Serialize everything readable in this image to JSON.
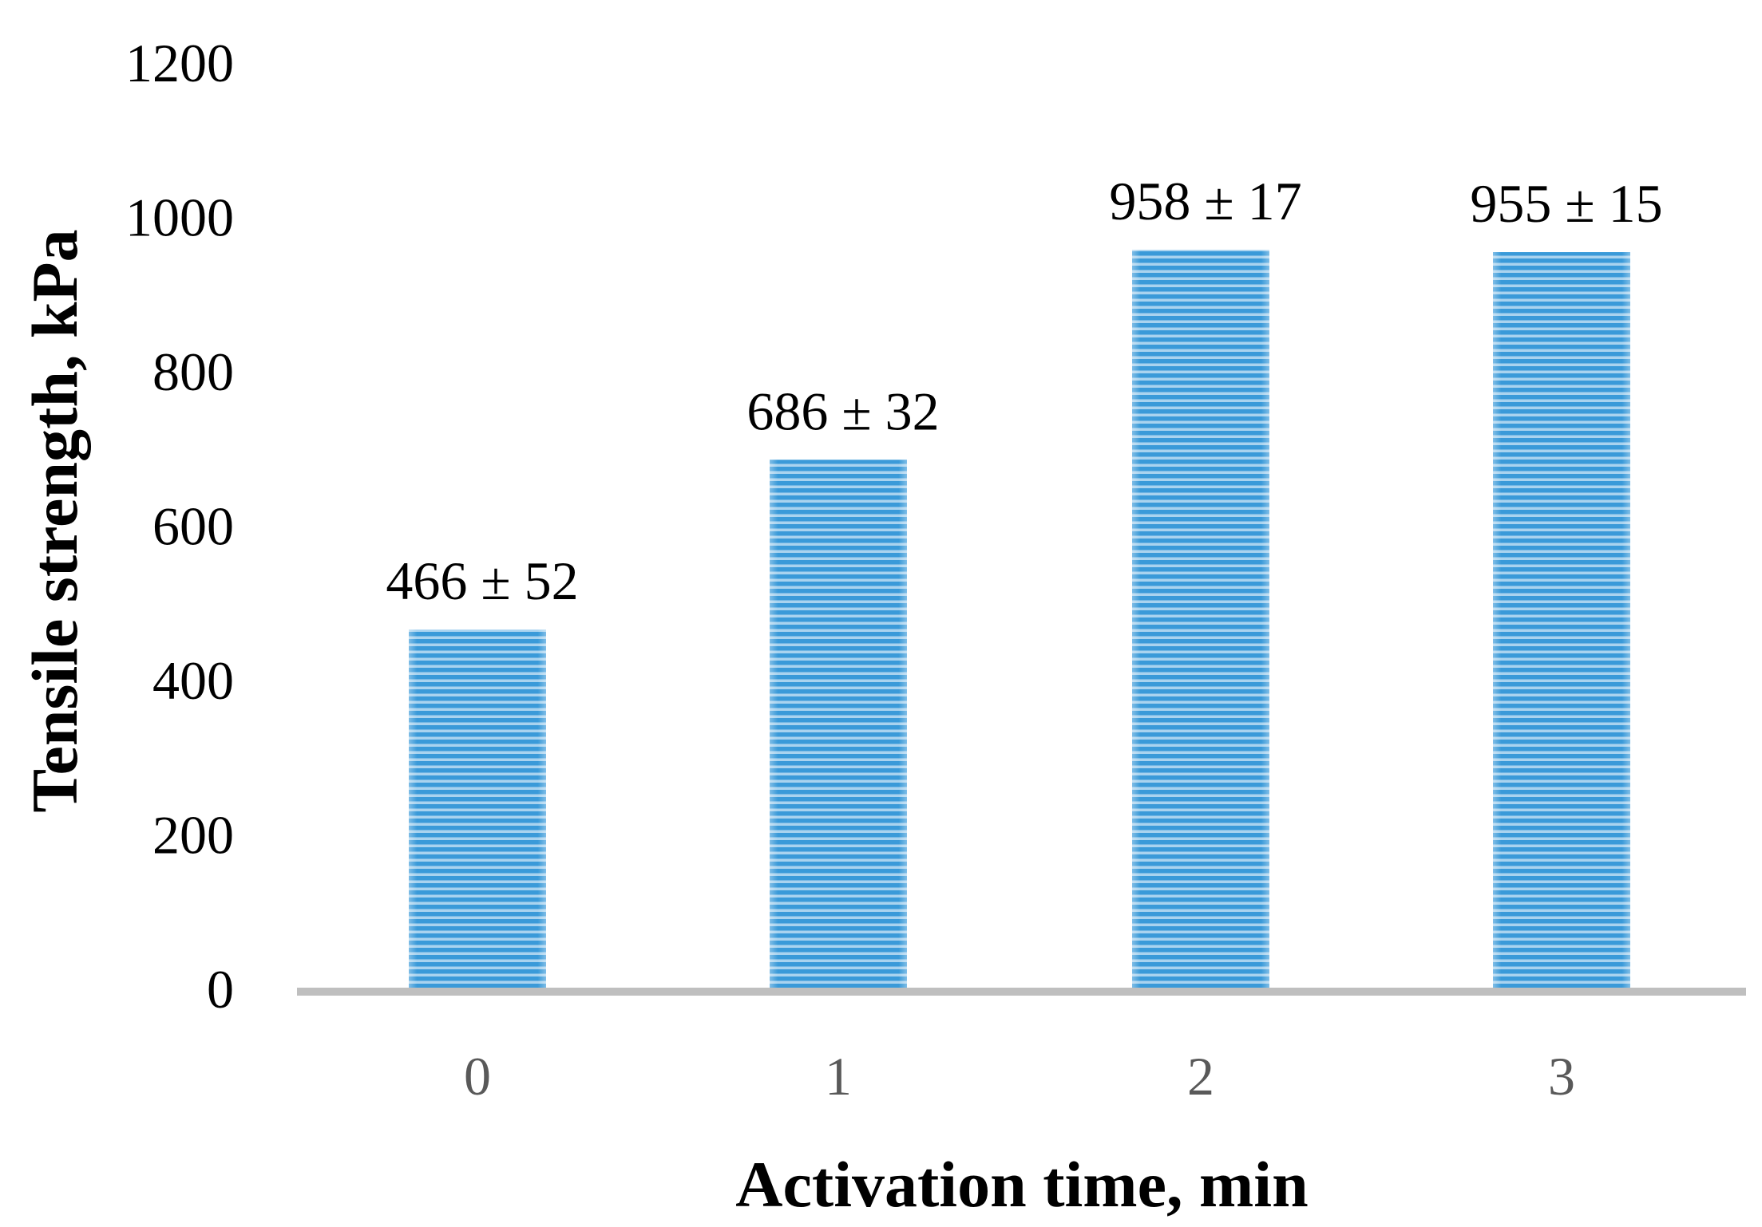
{
  "chart_data": {
    "type": "bar",
    "title": "",
    "xlabel": "Activation time, min",
    "ylabel": "Tensile strength, kPa",
    "categories": [
      "0",
      "1",
      "2",
      "3"
    ],
    "values": [
      466,
      686,
      958,
      955
    ],
    "data_labels": [
      "466 ± 52",
      "686 ± 32",
      "958 ± 17",
      "955 ± 15"
    ],
    "yticks": [
      "0",
      "200",
      "400",
      "600",
      "800",
      "1000",
      "1200"
    ],
    "ylim": [
      0,
      1200
    ],
    "grid": false,
    "legend": "none",
    "bar_color": "#3a9ad9",
    "bar_stripe_color": "#a9d3ef",
    "axis_color": "#bfbfbf"
  }
}
